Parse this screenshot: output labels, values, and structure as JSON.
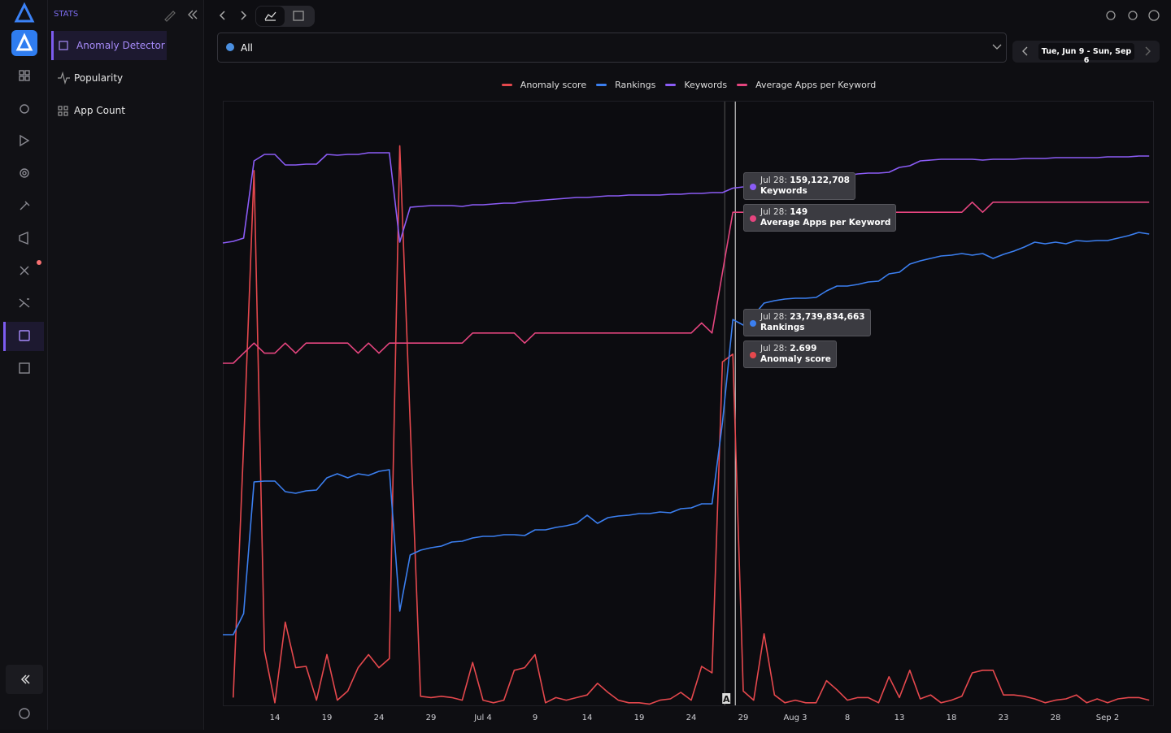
{
  "sidebar": {
    "section": "STATS",
    "items": [
      "Anomaly Detector",
      "Popularity",
      "App Count"
    ]
  },
  "filter": "All",
  "date_range": "Tue, Jun 9 - Sun, Sep 6",
  "chart_data": {
    "type": "line",
    "legend": "top",
    "categories": [
      null,
      null,
      null,
      null,
      null,
      "14",
      null,
      null,
      null,
      null,
      "19",
      null,
      null,
      null,
      null,
      "24",
      null,
      null,
      null,
      null,
      "29",
      null,
      null,
      null,
      null,
      "Jul 4",
      null,
      null,
      null,
      null,
      "9",
      null,
      null,
      null,
      null,
      "14",
      null,
      null,
      null,
      null,
      "19",
      null,
      null,
      null,
      null,
      "24",
      null,
      null,
      null,
      null,
      "29",
      null,
      null,
      null,
      null,
      "Aug 3",
      null,
      null,
      null,
      null,
      "8",
      null,
      null,
      null,
      null,
      "13",
      null,
      null,
      null,
      null,
      "18",
      null,
      null,
      null,
      null,
      "23",
      null,
      null,
      null,
      null,
      "28",
      null,
      null,
      null,
      null,
      "Sep 2",
      null,
      null,
      null,
      null
    ],
    "series": [
      {
        "name": "Anomaly score",
        "color": "#e5484d",
        "ylim": [
          0,
          4.64
        ],
        "values": [
          null,
          0.06,
          2.0,
          4.11,
          0.42,
          0.02,
          0.64,
          0.29,
          0.3,
          0.04,
          0.39,
          0.04,
          0.11,
          0.29,
          0.39,
          0.29,
          0.36,
          4.3,
          2.17,
          0.07,
          0.06,
          0.07,
          0.06,
          0.04,
          0.33,
          0.04,
          0.02,
          0.04,
          0.27,
          0.29,
          0.39,
          0.02,
          0.06,
          0.04,
          0.06,
          0.08,
          0.17,
          0.1,
          0.04,
          0.02,
          0.02,
          0.01,
          0.04,
          0.05,
          0.1,
          0.04,
          0.3,
          0.25,
          2.64,
          2.699,
          0.11,
          0.04,
          0.55,
          0.08,
          0.02,
          0.04,
          0.02,
          0.02,
          0.19,
          0.12,
          0.04,
          0.06,
          0.06,
          0.02,
          0.22,
          0.06,
          0.27,
          0.05,
          0.08,
          0.02,
          0.04,
          0.07,
          0.25,
          0.27,
          0.27,
          0.08,
          0.08,
          0.07,
          0.05,
          0.02,
          0.04,
          0.05,
          0.08,
          0.02,
          0.05,
          0.02,
          0.05,
          0.06,
          0.06,
          0.04
        ]
      },
      {
        "name": "Rankings",
        "color": "#3b7ff0",
        "ylim": [
          0,
          37150000000
        ],
        "values": [
          4350000000,
          4350000000,
          5650000000,
          13750000000,
          13800000000,
          13800000000,
          13150000000,
          13050000000,
          13200000000,
          13250000000,
          14000000000,
          14250000000,
          14000000000,
          14250000000,
          14150000000,
          14400000000,
          14500000000,
          5800000000,
          9250000000,
          9550000000,
          9700000000,
          9800000000,
          10050000000,
          10100000000,
          10300000000,
          10400000000,
          10400000000,
          10500000000,
          10500000000,
          10450000000,
          10800000000,
          10800000000,
          10950000000,
          11050000000,
          11200000000,
          11700000000,
          11200000000,
          11550000000,
          11650000000,
          11700000000,
          11800000000,
          11800000000,
          11900000000,
          11850000000,
          12100000000,
          12150000000,
          12400000000,
          12400000000,
          17400000000,
          23739834663,
          23400000000,
          24000000000,
          24750000000,
          24900000000,
          25000000000,
          25050000000,
          25050000000,
          25100000000,
          25500000000,
          25800000000,
          25800000000,
          25900000000,
          26050000000,
          26100000000,
          26550000000,
          26650000000,
          27150000000,
          27350000000,
          27500000000,
          27650000000,
          27700000000,
          27800000000,
          27700000000,
          27800000000,
          27500000000,
          27750000000,
          27950000000,
          28200000000,
          28500000000,
          28400000000,
          28500000000,
          28400000000,
          28600000000,
          28550000000,
          28600000000,
          28600000000,
          28750000000,
          28900000000,
          29100000000,
          29000000000
        ]
      },
      {
        "name": "Keywords",
        "color": "#8b5cf6",
        "ylim": [
          0,
          185750000
        ],
        "values": [
          142250000,
          142750000,
          143750000,
          167500000,
          169500000,
          169500000,
          166250000,
          166250000,
          166500000,
          166500000,
          169500000,
          169250000,
          169500000,
          169500000,
          170000000,
          170000000,
          170000000,
          142500000,
          153250000,
          153500000,
          153750000,
          153750000,
          153750000,
          153500000,
          154000000,
          154000000,
          154250000,
          154500000,
          154500000,
          155000000,
          155250000,
          155500000,
          155750000,
          156000000,
          156250000,
          156250000,
          156500000,
          156750000,
          156750000,
          157000000,
          157000000,
          157000000,
          157000000,
          157250000,
          157250000,
          157500000,
          157500000,
          157750000,
          157750000,
          159122708,
          159500000,
          160500000,
          160750000,
          161000000,
          161250000,
          161750000,
          162000000,
          162250000,
          162500000,
          162750000,
          163000000,
          163500000,
          163750000,
          163750000,
          164000000,
          165500000,
          166000000,
          167500000,
          167750000,
          168000000,
          168000000,
          168000000,
          168000000,
          167750000,
          168000000,
          168000000,
          168000000,
          168250000,
          168250000,
          168250000,
          168500000,
          168500000,
          168500000,
          168500000,
          168500000,
          168750000,
          168750000,
          168750000,
          169000000,
          169000000
        ]
      },
      {
        "name": "Average Apps per Keyword",
        "color": "#e5457f",
        "ylim": [
          100,
          160
        ],
        "values": [
          134,
          134,
          135,
          136,
          135,
          135,
          136,
          135,
          136,
          136,
          136,
          136,
          136,
          135,
          136,
          135,
          136,
          136,
          136,
          136,
          136,
          136,
          136,
          136,
          137,
          137,
          137,
          137,
          137,
          136,
          137,
          137,
          137,
          137,
          137,
          137,
          137,
          137,
          137,
          137,
          137,
          137,
          137,
          137,
          137,
          137,
          138,
          137,
          143,
          149,
          149,
          149,
          149,
          149,
          149,
          149,
          149,
          149,
          149,
          149,
          149,
          149,
          149,
          149,
          149,
          149,
          149,
          149,
          149,
          149,
          149,
          149,
          150,
          149,
          150,
          150,
          150,
          150,
          150,
          150,
          150,
          150,
          150,
          150,
          150,
          150,
          150,
          150,
          150,
          150
        ]
      }
    ],
    "tooltips": [
      {
        "label": "Jul 28:",
        "value": "159,122,708",
        "series": "Keywords"
      },
      {
        "label": "Jul 28:",
        "value": "149",
        "series": "Average Apps per Keyword"
      },
      {
        "label": "Jul 28:",
        "value": "23,739,834,663",
        "series": "Rankings"
      },
      {
        "label": "Jul 28:",
        "value": "2.699",
        "series": "Anomaly score"
      }
    ],
    "annotations": [
      {
        "text": "A"
      }
    ]
  }
}
